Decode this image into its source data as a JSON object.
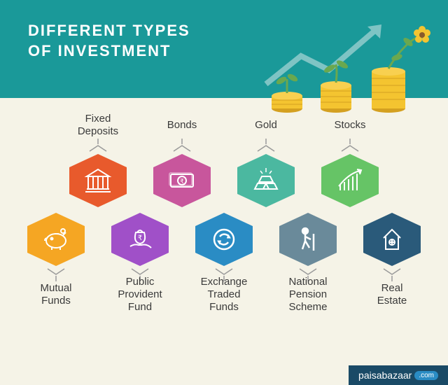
{
  "title_line1": "DIFFERENT TYPES",
  "title_line2": "OF INVESTMENT",
  "header_bg": "#1a9999",
  "body_bg": "#f5f3e7",
  "footer_bg": "#1a4a66",
  "footer_text": "paisabazaar",
  "footer_badge": ".com",
  "label_color": "#3a3a3a",
  "connector_color": "#9a9a9a",
  "coin_color": "#f4c430",
  "coin_edge": "#d4a020",
  "arrow_color": "#7fc4c4",
  "plant_stem": "#6aa84f",
  "flower_color": "#f4c430",
  "top_row": [
    {
      "label": "Fixed\nDeposits",
      "fill": "#e85a2c",
      "icon": "bank"
    },
    {
      "label": "Bonds",
      "fill": "#c8569c",
      "icon": "cash"
    },
    {
      "label": "Gold",
      "fill": "#4bb8a0",
      "icon": "gold"
    },
    {
      "label": "Stocks",
      "fill": "#66c466",
      "icon": "chart"
    }
  ],
  "bottom_row": [
    {
      "label": "Mutual\nFunds",
      "fill": "#f5a623",
      "icon": "piggy"
    },
    {
      "label": "Public\nProvident\nFund",
      "fill": "#a050c8",
      "icon": "hand-bag"
    },
    {
      "label": "Exchange\nTraded\nFunds",
      "fill": "#2a8cc4",
      "icon": "exchange"
    },
    {
      "label": "National\nPension\nScheme",
      "fill": "#6a8a9a",
      "icon": "pension"
    },
    {
      "label": "Real\nEstate",
      "fill": "#2a5a7a",
      "icon": "house"
    }
  ]
}
